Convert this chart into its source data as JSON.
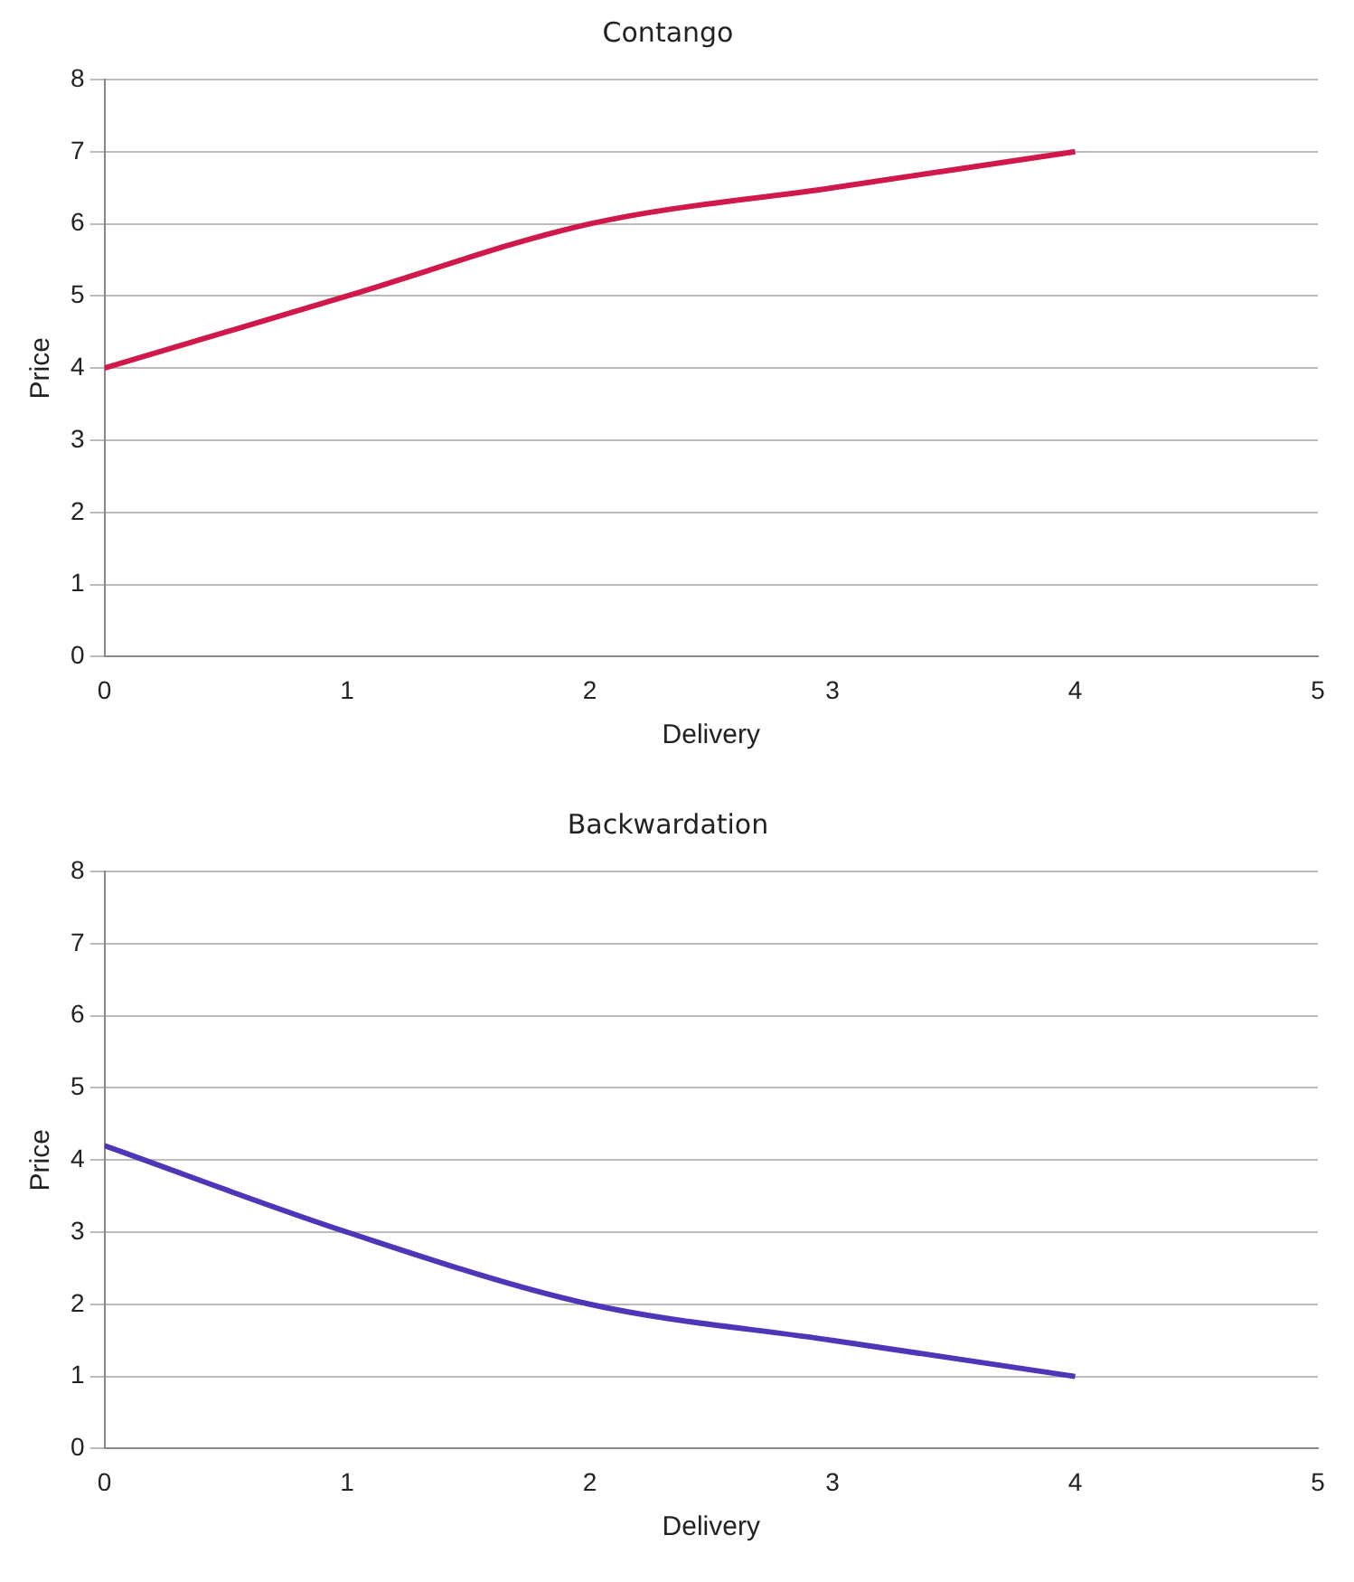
{
  "chart_data": [
    {
      "type": "line",
      "title": "Contango",
      "xlabel": "Delivery",
      "ylabel": "Price",
      "x": [
        0,
        1,
        2,
        3,
        4
      ],
      "series": [
        {
          "color": "#d0184a",
          "values": [
            4,
            5,
            6,
            6.5,
            7
          ]
        }
      ],
      "xlim": [
        0,
        5
      ],
      "xticks": [
        0,
        1,
        2,
        3,
        4,
        5
      ],
      "ylim": [
        0,
        8
      ],
      "yticks": [
        0,
        1,
        2,
        3,
        4,
        5,
        6,
        7,
        8
      ],
      "grid": "y",
      "legend": false,
      "marker": "none"
    },
    {
      "type": "line",
      "title": "Backwardation",
      "xlabel": "Delivery",
      "ylabel": "Price",
      "x": [
        0,
        1,
        2,
        3,
        4
      ],
      "series": [
        {
          "color": "#4f35b8",
          "values": [
            4.2,
            3,
            2,
            1.5,
            1
          ]
        }
      ],
      "xlim": [
        0,
        5
      ],
      "xticks": [
        0,
        1,
        2,
        3,
        4,
        5
      ],
      "ylim": [
        0,
        8
      ],
      "yticks": [
        0,
        1,
        2,
        3,
        4,
        5,
        6,
        7,
        8
      ],
      "grid": "y",
      "legend": false,
      "marker": "none"
    }
  ]
}
